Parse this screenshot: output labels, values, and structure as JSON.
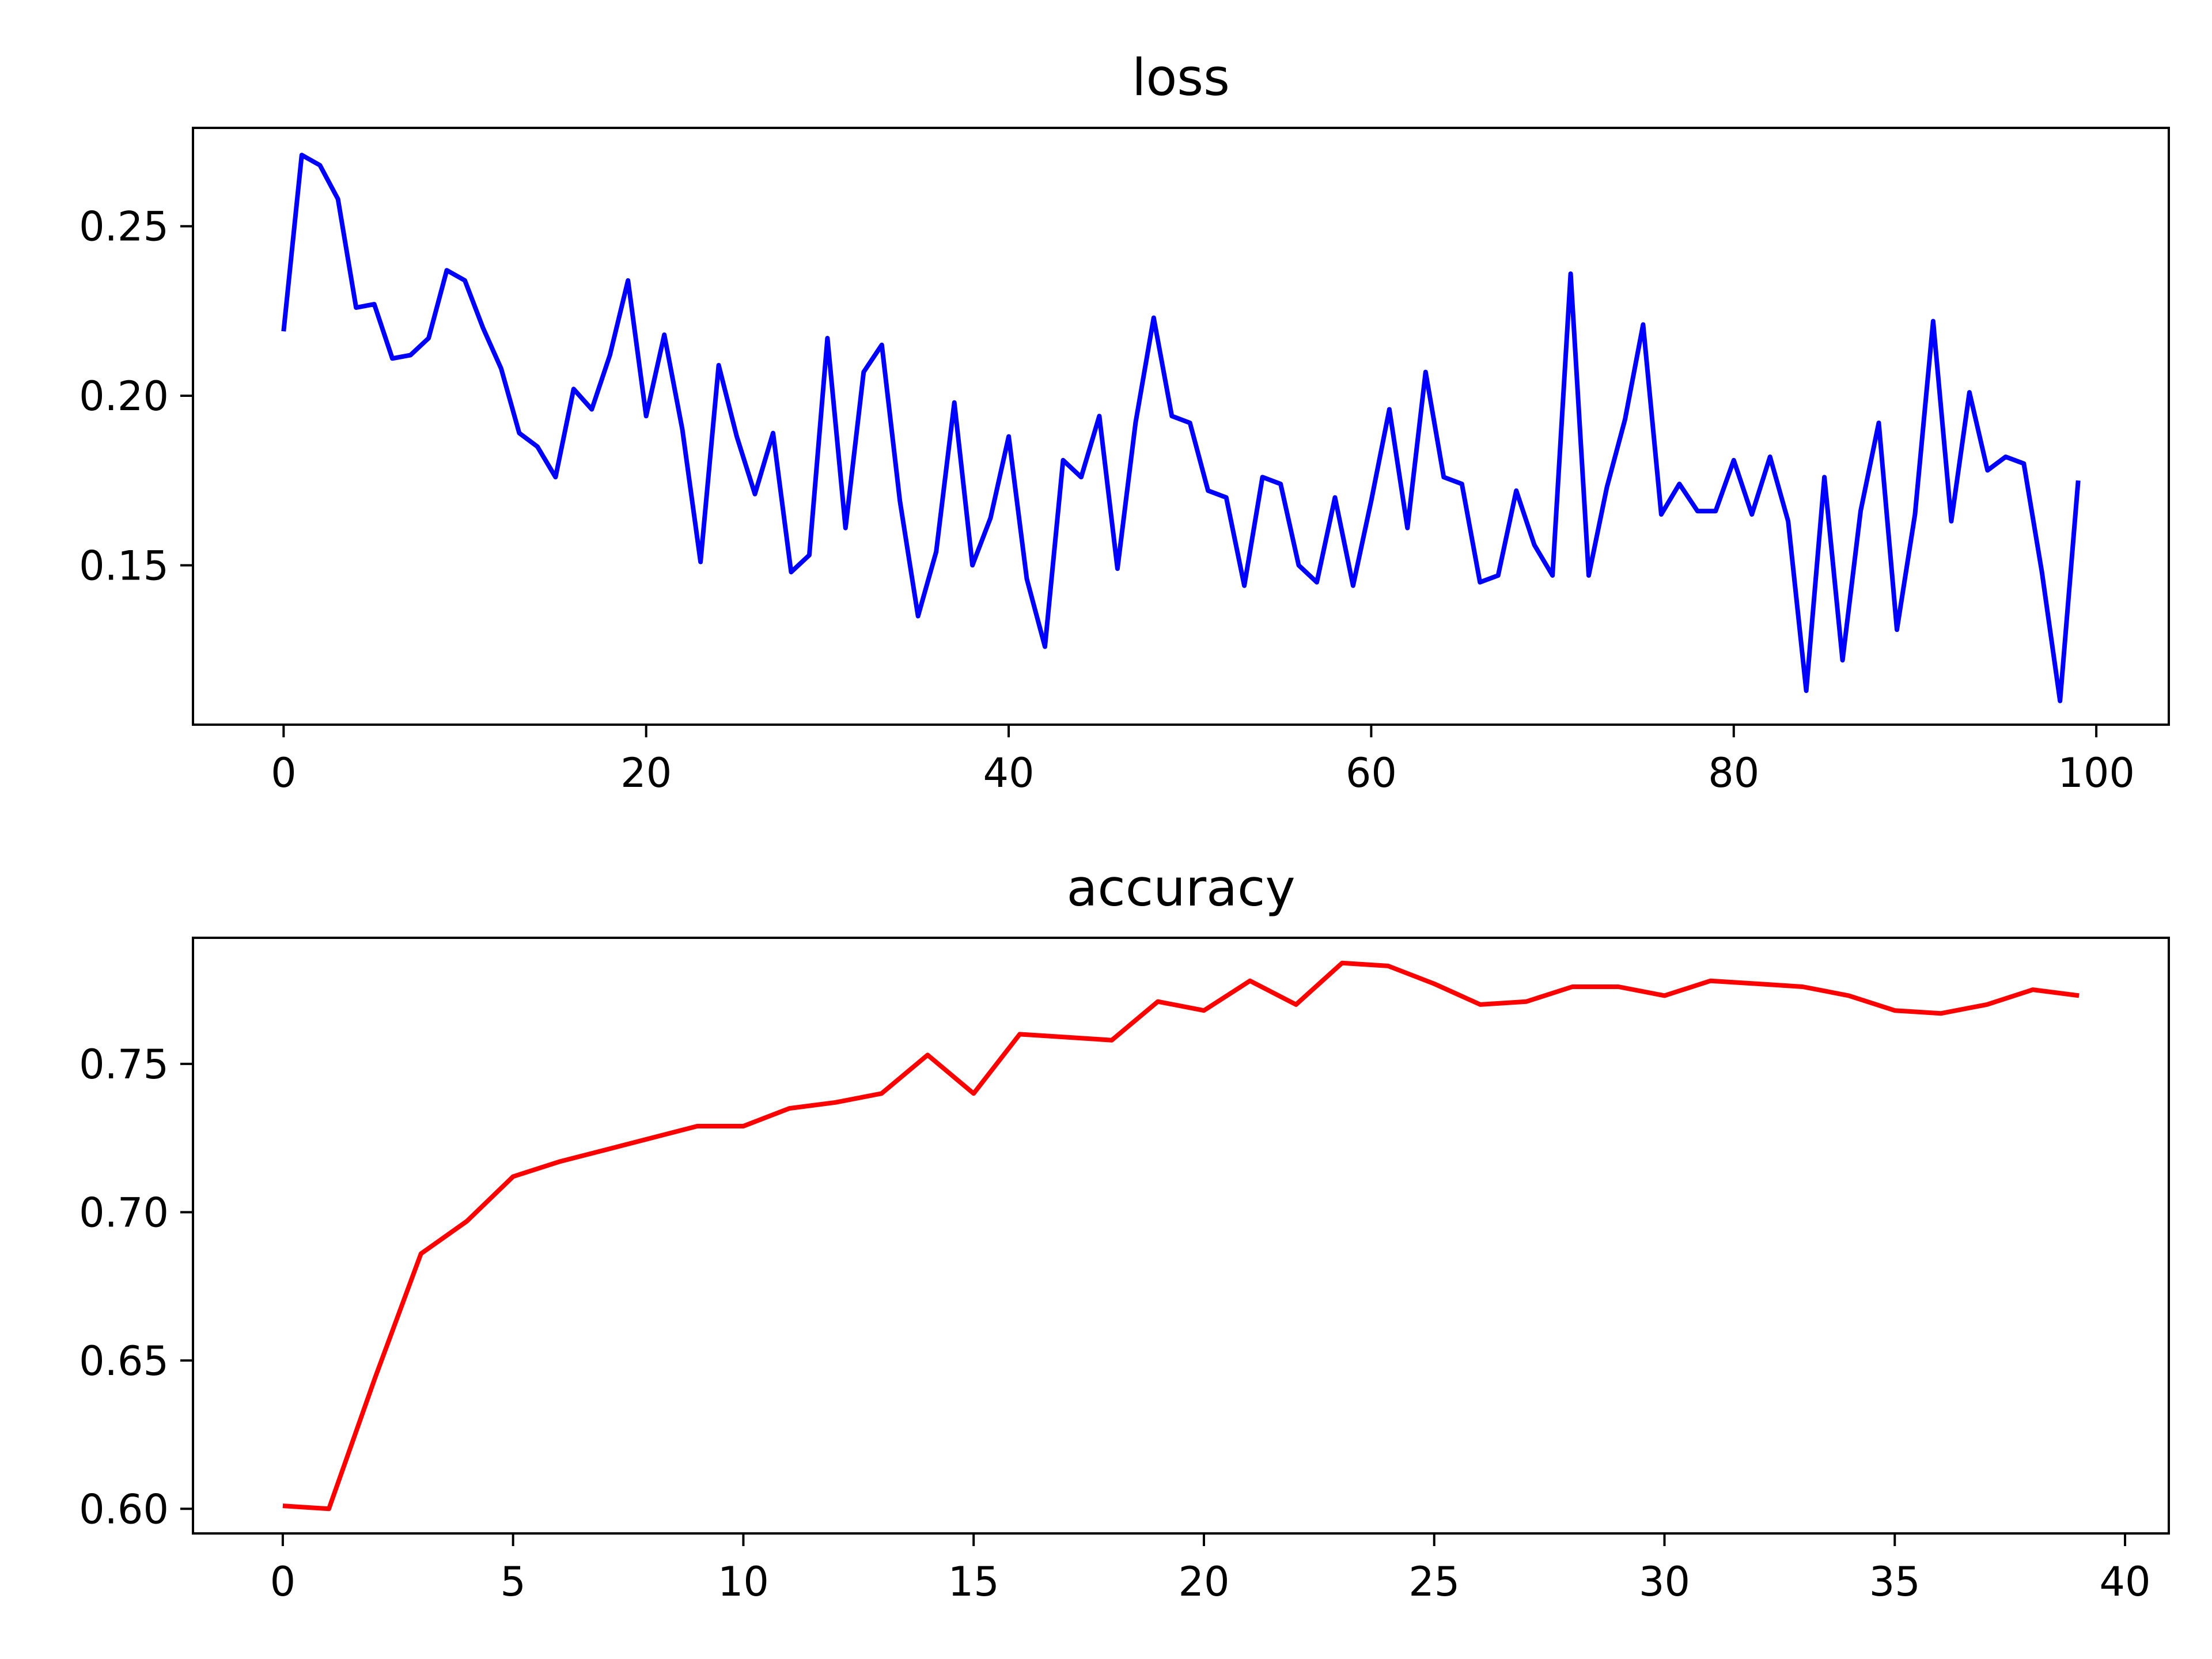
{
  "chart_data": [
    {
      "type": "line",
      "title": "loss",
      "xlabel": "",
      "ylabel": "",
      "xlim": [
        -5,
        104
      ],
      "ylim": [
        0.103,
        0.279
      ],
      "xticks": [
        0,
        20,
        40,
        60,
        80,
        100
      ],
      "xtick_labels": [
        "0",
        "20",
        "40",
        "60",
        "80",
        "100"
      ],
      "yticks": [
        0.15,
        0.2,
        0.25
      ],
      "ytick_labels": [
        "0.15",
        "0.20",
        "0.25"
      ],
      "grid": false,
      "series": [
        {
          "color": "#0000ff",
          "x_start": 0,
          "values": [
            0.219,
            0.271,
            0.268,
            0.258,
            0.226,
            0.227,
            0.211,
            0.212,
            0.217,
            0.237,
            0.234,
            0.22,
            0.208,
            0.189,
            0.185,
            0.176,
            0.202,
            0.196,
            0.212,
            0.234,
            0.194,
            0.218,
            0.19,
            0.151,
            0.209,
            0.188,
            0.171,
            0.189,
            0.148,
            0.153,
            0.217,
            0.161,
            0.207,
            0.215,
            0.169,
            0.135,
            0.154,
            0.198,
            0.15,
            0.164,
            0.188,
            0.146,
            0.126,
            0.181,
            0.176,
            0.194,
            0.149,
            0.192,
            0.223,
            0.194,
            0.192,
            0.172,
            0.17,
            0.144,
            0.176,
            0.174,
            0.15,
            0.145,
            0.17,
            0.144,
            0.169,
            0.196,
            0.161,
            0.207,
            0.176,
            0.174,
            0.145,
            0.147,
            0.172,
            0.156,
            0.147,
            0.236,
            0.147,
            0.173,
            0.193,
            0.221,
            0.165,
            0.174,
            0.166,
            0.166,
            0.181,
            0.165,
            0.182,
            0.163,
            0.113,
            0.176,
            0.122,
            0.166,
            0.192,
            0.131,
            0.165,
            0.222,
            0.163,
            0.201,
            0.178,
            0.182,
            0.18,
            0.148,
            0.11,
            0.175
          ]
        }
      ]
    },
    {
      "type": "line",
      "title": "accuracy",
      "xlabel": "",
      "ylabel": "",
      "xlim": [
        -1.95,
        40.95
      ],
      "ylim": [
        0.5917,
        0.7925
      ],
      "xticks": [
        0,
        5,
        10,
        15,
        20,
        25,
        30,
        35,
        40
      ],
      "xtick_labels": [
        "0",
        "5",
        "10",
        "15",
        "20",
        "25",
        "30",
        "35",
        "40"
      ],
      "yticks": [
        0.6,
        0.65,
        0.7,
        0.75
      ],
      "ytick_labels": [
        "0.60",
        "0.65",
        "0.70",
        "0.75"
      ],
      "grid": false,
      "series": [
        {
          "color": "#ff0000",
          "x_start": 0,
          "values": [
            0.601,
            0.6,
            0.644,
            0.686,
            0.697,
            0.712,
            0.717,
            0.721,
            0.725,
            0.729,
            0.729,
            0.735,
            0.737,
            0.74,
            0.753,
            0.74,
            0.76,
            0.759,
            0.758,
            0.771,
            0.768,
            0.778,
            0.77,
            0.784,
            0.783,
            0.777,
            0.77,
            0.771,
            0.776,
            0.776,
            0.773,
            0.778,
            0.777,
            0.776,
            0.773,
            0.768,
            0.767,
            0.77,
            0.775,
            0.773
          ]
        }
      ]
    }
  ]
}
